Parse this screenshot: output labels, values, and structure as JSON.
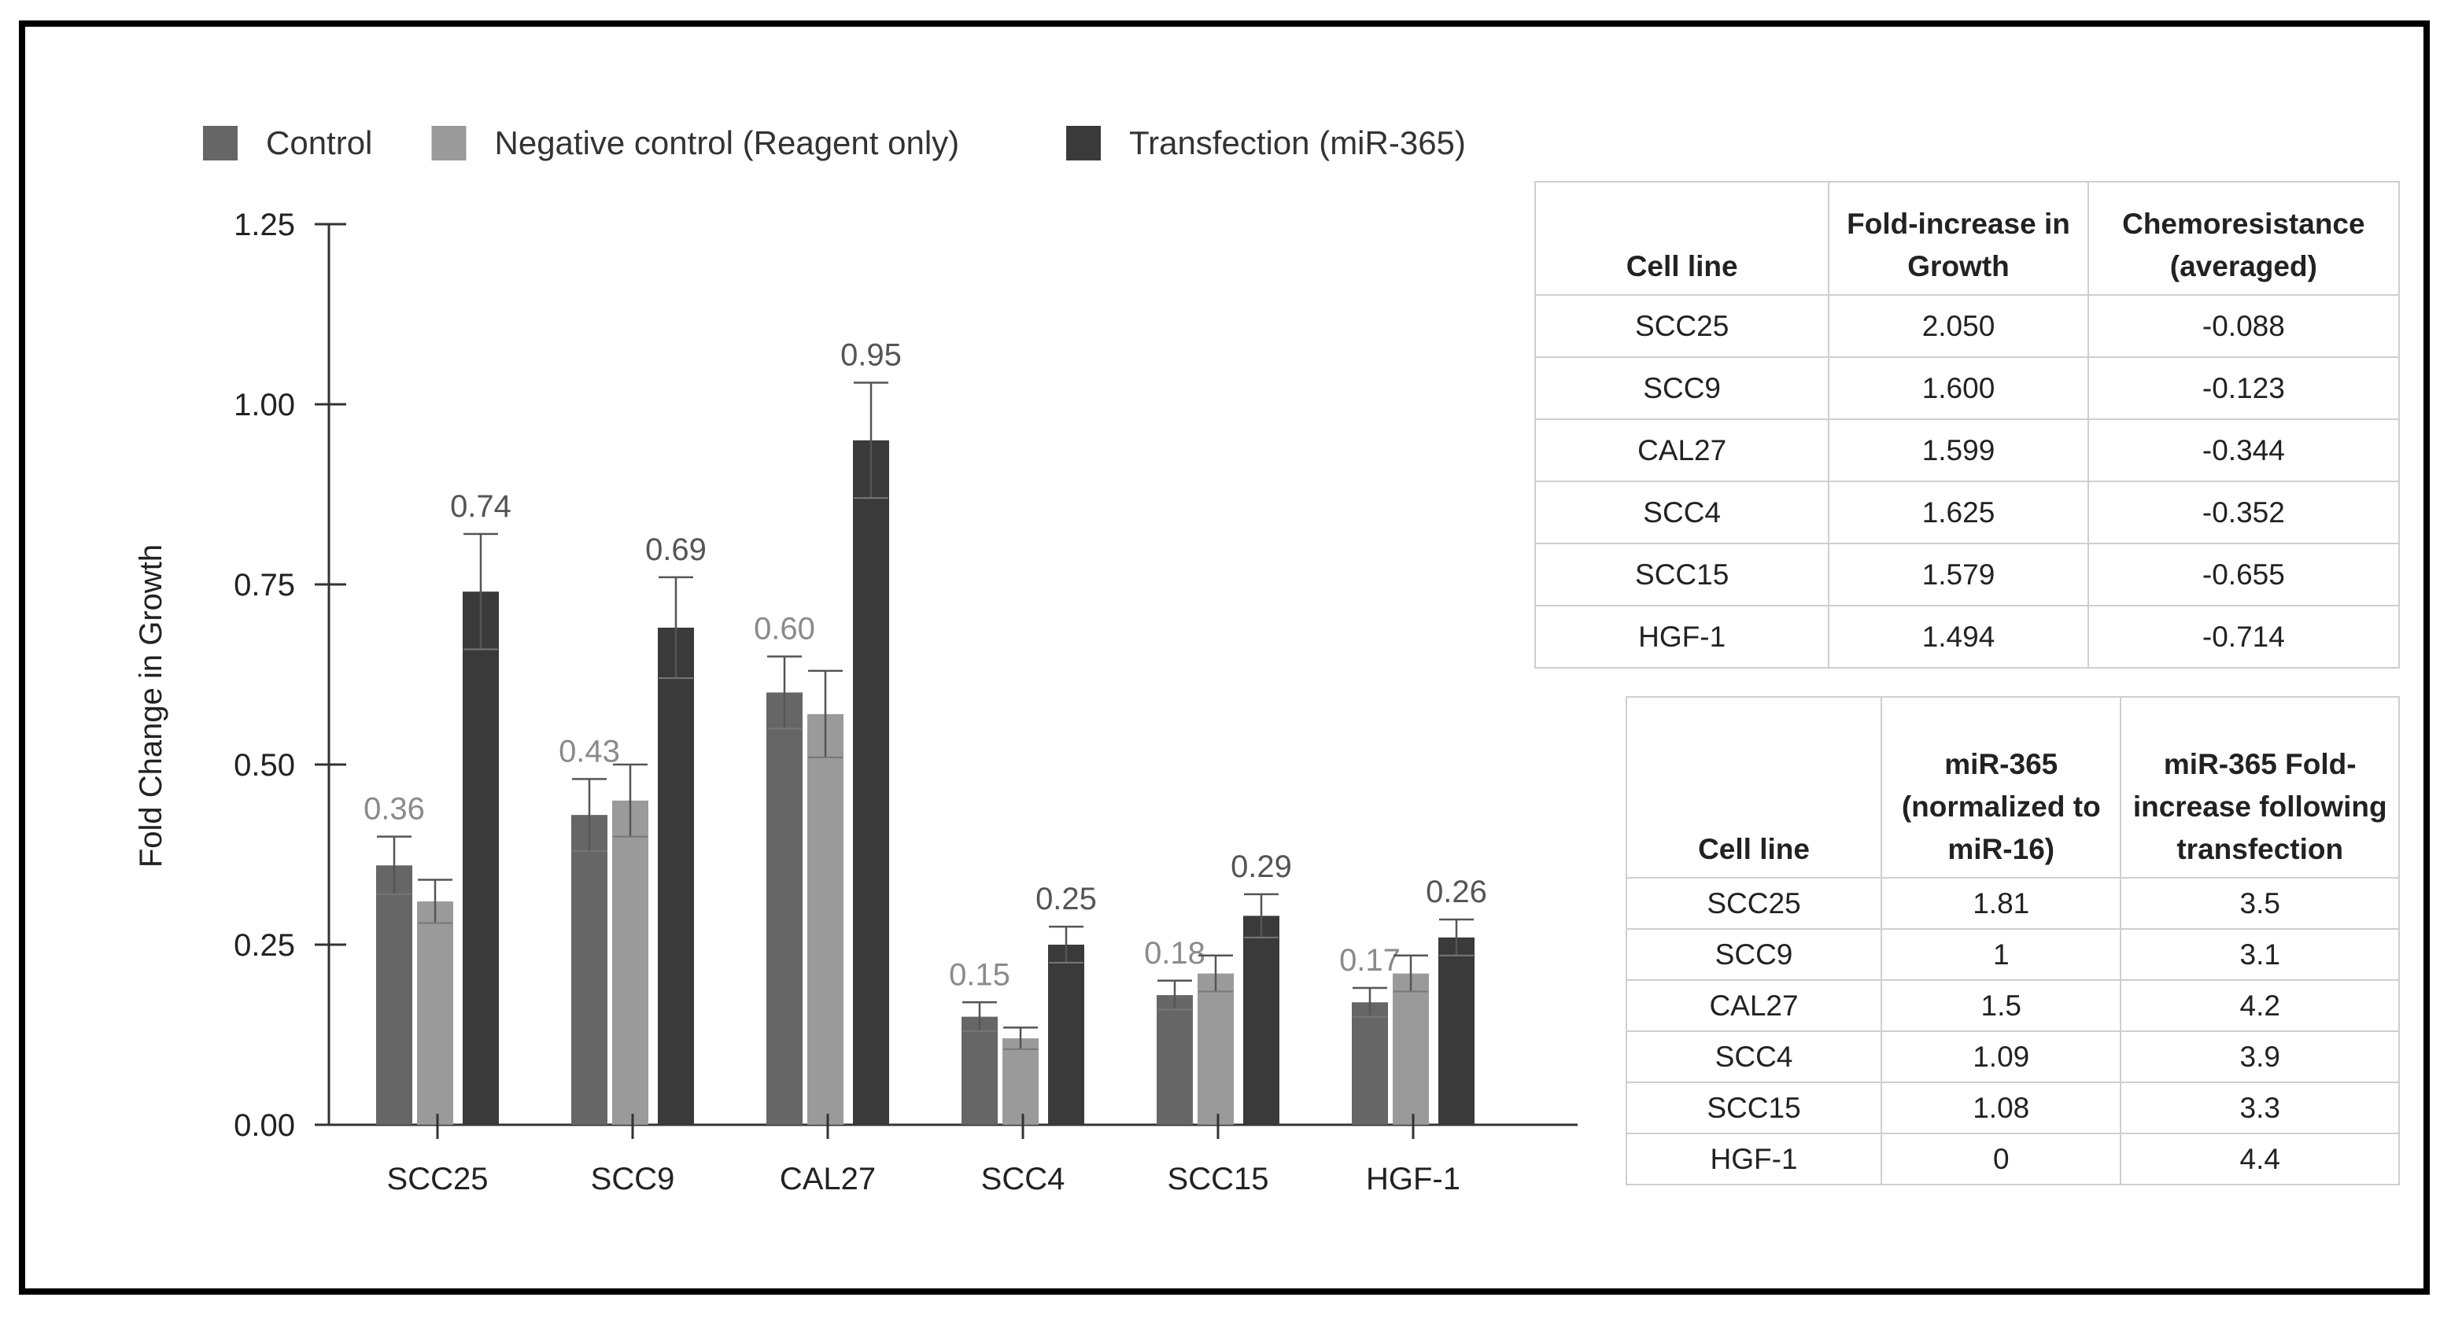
{
  "chart_data": {
    "type": "bar",
    "categories": [
      "SCC25",
      "SCC9",
      "CAL27",
      "SCC4",
      "SCC15",
      "HGF-1"
    ],
    "series": [
      {
        "name": "Control",
        "color": "#666666",
        "values": [
          0.36,
          0.43,
          0.6,
          0.15,
          0.18,
          0.17
        ],
        "errors": [
          0.04,
          0.05,
          0.05,
          0.02,
          0.02,
          0.02
        ]
      },
      {
        "name": "Negative control (Reagent only)",
        "color": "#9a9a9a",
        "values": [
          0.31,
          0.45,
          0.57,
          0.12,
          0.21,
          0.21
        ],
        "errors": [
          0.03,
          0.05,
          0.06,
          0.015,
          0.025,
          0.025
        ]
      },
      {
        "name": "Transfection (miR-365)",
        "color": "#3a3a3a",
        "values": [
          0.74,
          0.69,
          0.95,
          0.25,
          0.29,
          0.26
        ],
        "errors": [
          0.08,
          0.07,
          0.08,
          0.025,
          0.03,
          0.025
        ]
      }
    ],
    "data_labels": {
      "Control": [
        "0.36",
        "0.43",
        "0.60",
        "0.15",
        "0.18",
        "0.17"
      ],
      "Transfection (miR-365)": [
        "0.74",
        "0.69",
        "0.95",
        "0.25",
        "0.29",
        "0.26"
      ]
    },
    "ylabel": "Fold Change in Growth",
    "xlabel": "",
    "ylim": [
      0,
      1.25
    ],
    "yticks": [
      "0.00",
      "0.25",
      "0.50",
      "0.75",
      "1.00",
      "1.25"
    ],
    "legend_position": "top-left",
    "grid": false
  },
  "table1": {
    "headers": [
      "Cell line",
      "Fold-increase in Growth",
      "Chemoresistance (averaged)"
    ],
    "rows": [
      [
        "SCC25",
        "2.050",
        "-0.088"
      ],
      [
        "SCC9",
        "1.600",
        "-0.123"
      ],
      [
        "CAL27",
        "1.599",
        "-0.344"
      ],
      [
        "SCC4",
        "1.625",
        "-0.352"
      ],
      [
        "SCC15",
        "1.579",
        "-0.655"
      ],
      [
        "HGF-1",
        "1.494",
        "-0.714"
      ]
    ]
  },
  "table2": {
    "headers": [
      "Cell line",
      "miR-365 (normalized to miR-16)",
      "miR-365 Fold-increase following transfection"
    ],
    "rows": [
      [
        "SCC25",
        "1.81",
        "3.5"
      ],
      [
        "SCC9",
        "1",
        "3.1"
      ],
      [
        "CAL27",
        "1.5",
        "4.2"
      ],
      [
        "SCC4",
        "1.09",
        "3.9"
      ],
      [
        "SCC15",
        "1.08",
        "3.3"
      ],
      [
        "HGF-1",
        "0",
        "4.4"
      ]
    ]
  }
}
